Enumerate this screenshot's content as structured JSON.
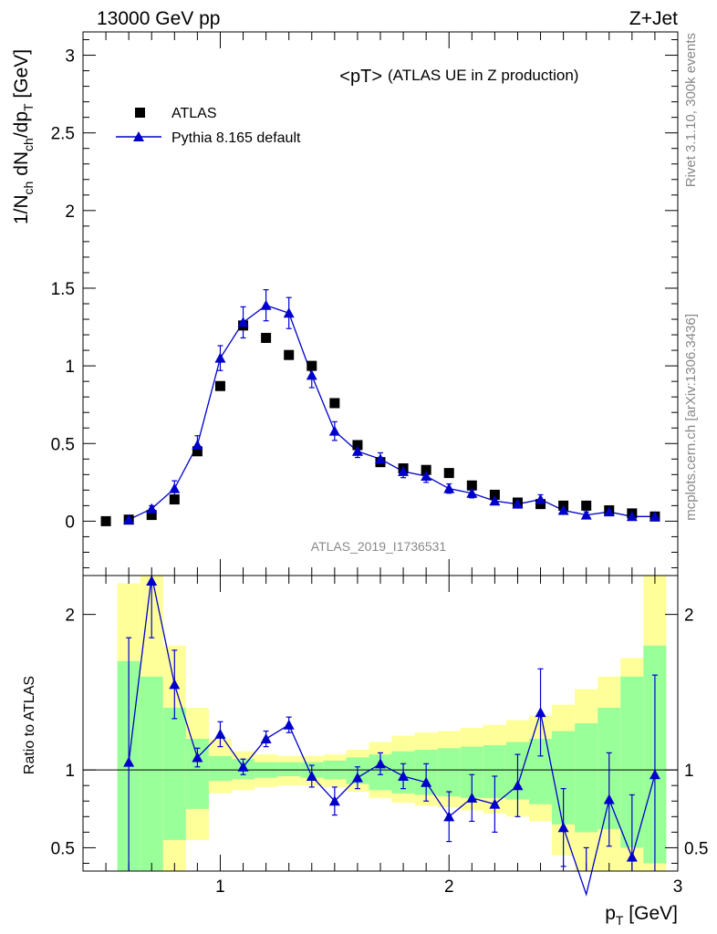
{
  "header": {
    "left": "13000 GeV pp",
    "right": "Z+Jet"
  },
  "side": {
    "rivet": "Rivet 3.1.10,  300k events",
    "mcplots": "mcplots.cern.ch [arXiv:1306.3436]"
  },
  "chart_data": [
    {
      "type": "scatter",
      "title": "<pT>",
      "subtitle": "(ATLAS UE in Z production)",
      "analysis_label": "ATLAS_2019_I1736531",
      "ylabel": {
        "main": "1/N",
        "sub1": "ch",
        "mid1": " dN",
        "sub2": "ch",
        "mid2": "/dp",
        "sub3": "T",
        "unit": " [GeV]"
      },
      "xlim": [
        0.4,
        3.0
      ],
      "ylim": [
        -0.35,
        3.15
      ],
      "yticks": [
        0,
        0.5,
        1,
        1.5,
        2,
        2.5,
        3
      ],
      "ytick_labels": [
        "0",
        "0.5",
        "1",
        "1.5",
        "2",
        "2.5",
        "3"
      ],
      "xticks": [
        1,
        2,
        3
      ],
      "series": [
        {
          "name": "ATLAS",
          "marker": "square",
          "color": "#000000",
          "x": [
            0.5,
            0.6,
            0.7,
            0.8,
            0.9,
            1.0,
            1.1,
            1.2,
            1.3,
            1.4,
            1.5,
            1.6,
            1.7,
            1.8,
            1.9,
            2.0,
            2.1,
            2.2,
            2.3,
            2.4,
            2.5,
            2.6,
            2.7,
            2.8,
            2.9
          ],
          "y": [
            0.0,
            0.01,
            0.04,
            0.14,
            0.45,
            0.87,
            1.26,
            1.18,
            1.07,
            1.0,
            0.76,
            0.49,
            0.38,
            0.34,
            0.33,
            0.31,
            0.23,
            0.17,
            0.12,
            0.11,
            0.1,
            0.1,
            0.07,
            0.05,
            0.03
          ]
        },
        {
          "name": "Pythia 8.165 default",
          "marker": "triangle",
          "color": "#0000cc",
          "x": [
            0.6,
            0.7,
            0.8,
            0.9,
            1.0,
            1.1,
            1.2,
            1.3,
            1.4,
            1.5,
            1.6,
            1.7,
            1.8,
            1.9,
            2.0,
            2.1,
            2.2,
            2.3,
            2.4,
            2.5,
            2.6,
            2.7,
            2.8,
            2.9
          ],
          "y": [
            0.01,
            0.08,
            0.21,
            0.49,
            1.05,
            1.28,
            1.39,
            1.34,
            0.94,
            0.58,
            0.45,
            0.4,
            0.32,
            0.29,
            0.21,
            0.18,
            0.13,
            0.11,
            0.14,
            0.07,
            0.04,
            0.06,
            0.03,
            0.03
          ],
          "yerr": [
            0.01,
            0.02,
            0.05,
            0.06,
            0.08,
            0.1,
            0.1,
            0.1,
            0.08,
            0.06,
            0.04,
            0.04,
            0.04,
            0.04,
            0.03,
            0.03,
            0.02,
            0.02,
            0.03,
            0.02,
            0.02,
            0.02,
            0.02,
            0.02
          ]
        }
      ]
    },
    {
      "type": "line",
      "ylabel": "Ratio to ATLAS",
      "xlabel": "p",
      "xlabel_sub": "T",
      "xlabel_unit": " [GeV]",
      "xlim": [
        0.4,
        3.0
      ],
      "ylim": [
        0.35,
        2.25
      ],
      "yticks": [
        0.5,
        1,
        2
      ],
      "ytick_labels": [
        "0.5",
        "1",
        "2"
      ],
      "xticks": [
        1,
        2,
        3
      ],
      "xtick_labels": [
        "1",
        "2",
        "3"
      ],
      "reference": 1.0,
      "bands": {
        "edges": [
          0.55,
          0.65,
          0.75,
          0.85,
          0.95,
          1.05,
          1.15,
          1.25,
          1.35,
          1.45,
          1.55,
          1.65,
          1.75,
          1.85,
          1.95,
          2.05,
          2.15,
          2.25,
          2.35,
          2.45,
          2.55,
          2.65,
          2.75,
          2.85,
          2.95
        ],
        "yellow_lo": [
          0.1,
          0.1,
          0.35,
          0.55,
          0.85,
          0.87,
          0.89,
          0.9,
          0.9,
          0.89,
          0.86,
          0.82,
          0.79,
          0.77,
          0.76,
          0.74,
          0.72,
          0.7,
          0.67,
          0.45,
          0.35,
          0.3,
          0.3,
          0.25
        ],
        "yellow_hi": [
          2.2,
          2.3,
          1.8,
          1.4,
          1.2,
          1.12,
          1.1,
          1.09,
          1.09,
          1.1,
          1.13,
          1.18,
          1.22,
          1.24,
          1.25,
          1.27,
          1.29,
          1.32,
          1.35,
          1.42,
          1.52,
          1.6,
          1.72,
          2.3
        ],
        "green_lo": [
          0.2,
          0.2,
          0.55,
          0.75,
          0.93,
          0.94,
          0.95,
          0.96,
          0.95,
          0.94,
          0.91,
          0.87,
          0.85,
          0.84,
          0.83,
          0.82,
          0.82,
          0.81,
          0.78,
          0.65,
          0.6,
          0.62,
          0.5,
          0.4
        ],
        "green_hi": [
          1.7,
          1.6,
          1.4,
          1.2,
          1.09,
          1.07,
          1.05,
          1.05,
          1.05,
          1.06,
          1.08,
          1.1,
          1.12,
          1.13,
          1.14,
          1.15,
          1.16,
          1.18,
          1.2,
          1.25,
          1.3,
          1.4,
          1.6,
          1.8
        ]
      },
      "series": [
        {
          "name": "Pythia 8.165 default",
          "color": "#0000cc",
          "x": [
            0.6,
            0.7,
            0.8,
            0.9,
            1.0,
            1.1,
            1.2,
            1.3,
            1.4,
            1.5,
            1.6,
            1.7,
            1.8,
            1.9,
            2.0,
            2.1,
            2.2,
            2.3,
            2.4,
            2.5,
            2.6,
            2.7,
            2.8,
            2.9
          ],
          "y": [
            1.05,
            2.25,
            1.55,
            1.08,
            1.23,
            1.02,
            1.2,
            1.29,
            0.96,
            0.8,
            0.95,
            1.04,
            0.96,
            0.92,
            0.7,
            0.82,
            0.78,
            0.9,
            1.37,
            0.63,
            0.2,
            0.81,
            0.44,
            0.97
          ],
          "yerr": [
            0.8,
            0.4,
            0.22,
            0.06,
            0.08,
            0.05,
            0.05,
            0.05,
            0.07,
            0.09,
            0.07,
            0.07,
            0.08,
            0.12,
            0.16,
            0.15,
            0.18,
            0.2,
            0.28,
            0.25,
            0.3,
            0.3,
            0.4,
            0.64
          ]
        }
      ]
    }
  ]
}
